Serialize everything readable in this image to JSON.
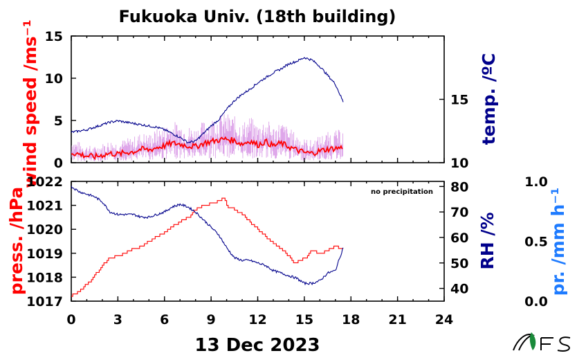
{
  "chart_data": [
    {
      "type": "line",
      "title": "Fukuoka Univ. (18th building)",
      "xlabel": "",
      "x_ticks": [
        0,
        3,
        6,
        9,
        12,
        15,
        18,
        21,
        24
      ],
      "xlim": [
        0,
        24
      ],
      "ylabel_left": "wind speed /ms⁻¹",
      "ylim_left": [
        0,
        15
      ],
      "yticks_left": [
        0,
        5,
        10,
        15
      ],
      "ylabel_right": "temp. /ºC",
      "ylim_right": [
        10,
        20
      ],
      "yticks_right": [
        10,
        15
      ],
      "colors": {
        "wind": "#ff0000",
        "wind_gust": "#d080e0",
        "temp": "#00008b"
      },
      "series": [
        {
          "axis": "right",
          "x": [
            0,
            0.5,
            1,
            1.5,
            2,
            2.5,
            3,
            3.5,
            4,
            4.5,
            5,
            5.5,
            6,
            6.5,
            7,
            7.5,
            8,
            8.5,
            9,
            9.5,
            10,
            10.5,
            11,
            11.5,
            12,
            12.5,
            13,
            13.5,
            14,
            14.5,
            15,
            15.5,
            16,
            16.5,
            17,
            17.5
          ],
          "values": [
            12.4,
            12.5,
            12.6,
            12.8,
            13.0,
            13.2,
            13.3,
            13.2,
            13.1,
            13.0,
            12.9,
            12.8,
            12.6,
            12.3,
            12.0,
            11.6,
            11.7,
            12.3,
            12.9,
            13.4,
            14.2,
            14.9,
            15.4,
            15.8,
            16.3,
            16.7,
            17.1,
            17.4,
            17.8,
            18.0,
            18.3,
            18.1,
            17.6,
            16.9,
            16.2,
            14.8
          ]
        },
        {
          "axis": "left",
          "x": [
            0,
            0.5,
            1,
            1.5,
            2,
            2.5,
            3,
            3.5,
            4,
            4.5,
            5,
            5.5,
            6,
            6.5,
            7,
            7.5,
            8,
            8.5,
            9,
            9.5,
            10,
            10.5,
            11,
            11.5,
            12,
            12.5,
            13,
            13.5,
            14,
            14.5,
            15,
            15.5,
            16,
            16.5,
            17,
            17.5
          ],
          "values": [
            1.2,
            1.0,
            0.8,
            0.7,
            0.9,
            1.1,
            1.0,
            1.2,
            1.3,
            1.6,
            1.5,
            1.8,
            2.0,
            2.3,
            2.2,
            2.0,
            1.9,
            2.3,
            2.5,
            2.7,
            2.8,
            2.6,
            2.2,
            2.6,
            2.1,
            2.5,
            2.0,
            2.3,
            1.9,
            1.5,
            1.2,
            1.1,
            1.4,
            1.6,
            1.7,
            1.8
          ]
        }
      ]
    },
    {
      "type": "line",
      "xlabel": "13 Dec 2023",
      "x_ticks": [
        0,
        3,
        6,
        9,
        12,
        15,
        18,
        21,
        24
      ],
      "xlim": [
        0,
        24
      ],
      "ylabel_left": "press. /hPa",
      "ylim_left": [
        1017,
        1022
      ],
      "yticks_left": [
        1017,
        1018,
        1019,
        1020,
        1021,
        1022
      ],
      "ylabel_right": "RH /%",
      "ylim_right": [
        35,
        82
      ],
      "yticks_right": [
        40,
        50,
        60,
        70,
        80
      ],
      "ylabel_right2": "pr. /mm h⁻¹",
      "ylim_right2": [
        0.0,
        1.0
      ],
      "yticks_right2": [
        "0.0",
        "0.5",
        "1.0"
      ],
      "annotation": "no precipitation",
      "colors": {
        "press": "#ff0000",
        "rh": "#00008b",
        "pr": "#1e7bff"
      },
      "series": [
        {
          "axis": "left",
          "x": [
            0,
            0.5,
            1,
            1.5,
            2,
            2.5,
            3,
            3.5,
            4,
            4.5,
            5,
            5.5,
            6,
            6.5,
            7,
            7.5,
            8,
            8.5,
            9,
            9.5,
            9.8,
            10,
            10.5,
            11,
            11.5,
            12,
            12.5,
            13,
            13.5,
            14,
            14.3,
            14.5,
            15,
            15.5,
            16,
            16.5,
            17,
            17.5
          ],
          "values": [
            1017.2,
            1017.4,
            1017.7,
            1018.1,
            1018.5,
            1018.8,
            1018.9,
            1019.0,
            1019.2,
            1019.3,
            1019.5,
            1019.7,
            1019.9,
            1020.1,
            1020.3,
            1020.5,
            1020.8,
            1021.0,
            1021.1,
            1021.2,
            1021.3,
            1021.0,
            1020.8,
            1020.6,
            1020.3,
            1020.0,
            1019.7,
            1019.4,
            1019.2,
            1018.9,
            1018.6,
            1018.6,
            1018.8,
            1019.1,
            1019.0,
            1019.1,
            1019.3,
            1019.2
          ]
        },
        {
          "axis": "right",
          "x": [
            0,
            0.5,
            1,
            1.5,
            2,
            2.5,
            3,
            3.5,
            4,
            4.5,
            5,
            5.5,
            6,
            6.5,
            7,
            7.5,
            8,
            8.5,
            9,
            9.5,
            10,
            10.5,
            11,
            11.5,
            12,
            12.5,
            13,
            13.5,
            14,
            14.5,
            15,
            15.5,
            16,
            16.5,
            17,
            17.5
          ],
          "values": [
            80,
            78,
            77,
            76,
            74,
            70,
            69,
            69,
            69,
            68,
            68,
            69,
            70,
            72,
            73,
            72,
            70,
            67,
            64,
            61,
            56,
            52,
            51,
            51,
            50,
            49,
            47,
            46,
            45,
            44,
            42,
            42,
            43,
            46,
            47,
            56
          ]
        }
      ]
    }
  ],
  "logo": {
    "name": "fes-logo"
  }
}
